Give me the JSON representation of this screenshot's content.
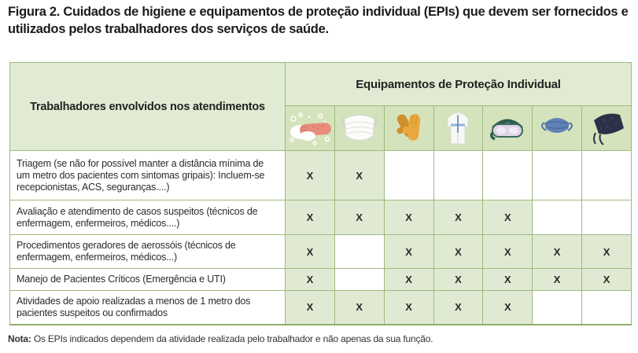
{
  "figure": {
    "title": "Figura 2. Cuidados de higiene e equipamentos de proteção individual (EPIs) que devem ser fornecidos e utilizados pelos trabalhadores dos serviços de saúde."
  },
  "table": {
    "row_header": "Trabalhadores envolvidos nos atendimentos",
    "group_header": "Equipamentos de Proteção Individual",
    "equipment_icons": [
      "hand-washing-icon",
      "surgical-mask-icon",
      "gloves-icon",
      "protective-gown-icon",
      "goggles-icon",
      "n95-mask-icon",
      "surgical-cap-icon"
    ],
    "mark_symbol": "X",
    "rows": [
      {
        "label": "Triagem (se não for possível manter a distância mínima de um metro dos pacientes com sintomas gripais): Incluem-se recepcionistas, ACS, seguranças....)",
        "marks": [
          "X",
          "X",
          "",
          "",
          "",
          "",
          ""
        ]
      },
      {
        "label": "Avaliação e atendimento de casos suspeitos (técnicos de enfermagem, enfermeiros, médicos....)",
        "marks": [
          "X",
          "X",
          "X",
          "X",
          "X",
          "",
          ""
        ]
      },
      {
        "label": "Procedimentos geradores de aerossóis (técnicos de enfermagem, enfermeiros, médicos...)",
        "marks": [
          "X",
          "",
          "X",
          "X",
          "X",
          "X",
          "X"
        ]
      },
      {
        "label": "Manejo de Pacientes Críticos (Emergência e UTI)",
        "marks": [
          "X",
          "",
          "X",
          "X",
          "X",
          "X",
          "X"
        ]
      },
      {
        "label": "Atividades de apoio realizadas a menos de 1 metro dos pacientes suspeitos ou confirmados",
        "marks": [
          "X",
          "X",
          "X",
          "X",
          "X",
          "",
          ""
        ]
      }
    ]
  },
  "note": {
    "prefix": "Nota:",
    "text": "Os EPIs indicados dependem da atividade realizada pelo trabalhador e não apenas da sua função."
  },
  "colors": {
    "header_bg": "#e1ebd3",
    "icon_row_bg": "#d4e3bc",
    "checked_cell_bg": "#e0ead3",
    "grid_border": "#9cba7d",
    "title_text": "#1b1b1b",
    "body_text": "#2b2b2b"
  }
}
